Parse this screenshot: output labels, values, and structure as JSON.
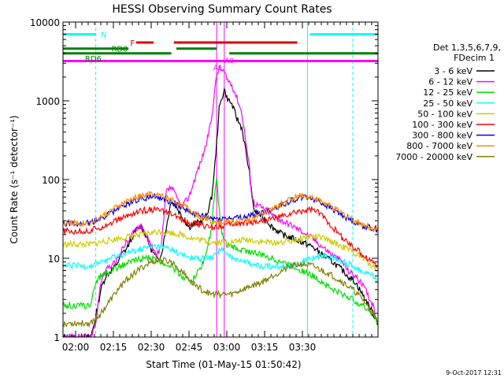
{
  "chart_data": {
    "type": "line",
    "title": "HESSI Observing Summary Count Rates",
    "xlabel": "Start Time (01-May-15 01:50:42)",
    "ylabel": "Count Rate (s⁻¹ detector⁻¹)",
    "ylog": true,
    "ylim": [
      1,
      10000
    ],
    "xlim_min": [
      5,
      130
    ],
    "x_tick_labels": [
      "02:00",
      "02:15",
      "02:30",
      "02:45",
      "03:00",
      "03:15",
      "03:30"
    ],
    "x_tick_min": [
      10,
      25,
      40,
      55,
      70,
      85,
      100
    ],
    "y_tick_labels": [
      "1",
      "10",
      "100",
      "1000",
      "10000"
    ],
    "y_ticks": [
      1,
      10,
      100,
      1000,
      10000
    ],
    "legend_title": [
      "Det 1,3,5,6,7,9,",
      "FDecim 1"
    ],
    "series": [
      {
        "name": "3 - 6 keV",
        "color": "#000000",
        "x": [
          5,
          16,
          18,
          20,
          22,
          26,
          28,
          30,
          32,
          34,
          36,
          38,
          40,
          42,
          44,
          46,
          48,
          50,
          52,
          55,
          58,
          60,
          62,
          64,
          65,
          66,
          67,
          69,
          70,
          72,
          74,
          76,
          79,
          80,
          81,
          86,
          88,
          92,
          96,
          100,
          104,
          108,
          112,
          116,
          118,
          121,
          125,
          128,
          130
        ],
        "y": [
          1,
          1,
          1.8,
          4,
          6,
          8,
          11,
          13,
          17,
          23,
          26,
          19,
          13,
          10,
          11,
          25,
          55,
          45,
          35,
          25,
          28,
          30,
          35,
          60,
          120,
          300,
          800,
          1400,
          1100,
          900,
          600,
          450,
          120,
          60,
          40,
          30,
          25,
          20,
          18,
          16,
          14,
          11,
          9,
          7,
          6,
          5,
          3,
          2,
          1.5
        ]
      },
      {
        "name": "6 - 12 keV",
        "color": "#ff00ff",
        "x": [
          5,
          16,
          18,
          20,
          22,
          26,
          28,
          30,
          32,
          34,
          36,
          38,
          40,
          42,
          44,
          46,
          48,
          50,
          52,
          55,
          58,
          60,
          62,
          64,
          65,
          66,
          67,
          69,
          70,
          72,
          74,
          76,
          79,
          80,
          81,
          86,
          90,
          96,
          100,
          104,
          108,
          112,
          116,
          118,
          121,
          125,
          128,
          130
        ],
        "y": [
          1,
          1,
          1.5,
          5,
          7,
          9,
          12,
          16,
          19,
          24,
          27,
          20,
          14,
          11,
          14,
          70,
          80,
          60,
          45,
          60,
          120,
          180,
          300,
          600,
          1200,
          2100,
          2600,
          2300,
          1900,
          1600,
          1100,
          700,
          140,
          60,
          50,
          40,
          32,
          26,
          22,
          18,
          14,
          11,
          9,
          7,
          6,
          4,
          2.5,
          1.5
        ]
      },
      {
        "name": "12 - 25 keV",
        "color": "#00dd00",
        "x": [
          5,
          16,
          18,
          20,
          24,
          28,
          32,
          36,
          40,
          44,
          48,
          52,
          56,
          60,
          62,
          64,
          65,
          66,
          67,
          68,
          70,
          72,
          75,
          80,
          84,
          88,
          92,
          96,
          100,
          104,
          108,
          112,
          116,
          120,
          124,
          128,
          130
        ],
        "y": [
          2.5,
          2.5,
          5,
          6,
          7,
          8,
          9,
          10,
          10,
          9,
          8,
          6,
          5,
          8,
          12,
          25,
          60,
          100,
          40,
          20,
          15,
          14,
          13,
          12,
          11,
          10,
          9,
          8,
          7,
          6,
          5,
          4,
          3.5,
          3,
          2.5,
          2,
          1.5
        ]
      },
      {
        "name": "25 - 50 keV",
        "color": "#00ffff",
        "x": [
          5,
          16,
          20,
          24,
          28,
          32,
          36,
          40,
          44,
          48,
          52,
          56,
          60,
          64,
          66,
          68,
          70,
          74,
          78,
          82,
          86,
          90,
          96,
          100,
          104,
          108,
          112,
          116,
          120,
          124,
          128,
          130
        ],
        "y": [
          8,
          8,
          9,
          10,
          11,
          12,
          13,
          14,
          14,
          13,
          11,
          10,
          10,
          10,
          12,
          13,
          11,
          10,
          9,
          8,
          8,
          8,
          8,
          9,
          10,
          11,
          10,
          9,
          8,
          7,
          6,
          5
        ]
      },
      {
        "name": "50 - 100 keV",
        "color": "#cccc00",
        "x": [
          5,
          16,
          20,
          24,
          28,
          32,
          36,
          40,
          44,
          48,
          52,
          56,
          60,
          64,
          68,
          72,
          76,
          80,
          84,
          88,
          92,
          96,
          100,
          104,
          108,
          112,
          116,
          120,
          124,
          128,
          130
        ],
        "y": [
          15,
          15,
          16,
          17,
          18,
          19,
          20,
          21,
          22,
          21,
          20,
          18,
          17,
          16,
          16,
          16,
          17,
          17,
          16,
          16,
          16,
          17,
          18,
          19,
          18,
          16,
          14,
          12,
          10,
          8,
          7
        ]
      },
      {
        "name": "100 - 300 keV",
        "color": "#ff0000",
        "x": [
          5,
          16,
          18,
          20,
          24,
          28,
          32,
          36,
          40,
          44,
          48,
          52,
          56,
          60,
          64,
          68,
          72,
          76,
          80,
          84,
          88,
          92,
          96,
          100,
          104,
          108,
          112,
          116,
          120,
          124,
          128,
          130
        ],
        "y": [
          22,
          22,
          24,
          25,
          28,
          32,
          36,
          40,
          42,
          40,
          36,
          32,
          28,
          26,
          25,
          26,
          27,
          28,
          29,
          30,
          32,
          34,
          37,
          40,
          42,
          35,
          25,
          18,
          14,
          11,
          9,
          8
        ]
      },
      {
        "name": "300 - 800 keV",
        "color": "#0000ff",
        "x": [
          5,
          16,
          20,
          24,
          28,
          32,
          36,
          40,
          44,
          48,
          52,
          56,
          60,
          64,
          68,
          72,
          76,
          80,
          84,
          88,
          92,
          96,
          100,
          104,
          108,
          112,
          116,
          120,
          124,
          128,
          130
        ],
        "y": [
          28,
          28,
          32,
          38,
          45,
          52,
          58,
          60,
          58,
          52,
          45,
          38,
          34,
          32,
          32,
          32,
          33,
          35,
          38,
          42,
          48,
          55,
          60,
          58,
          50,
          42,
          35,
          30,
          26,
          24,
          23
        ]
      },
      {
        "name": "800 - 7000 keV",
        "color": "#ff8c00",
        "x": [
          5,
          16,
          20,
          24,
          28,
          32,
          36,
          40,
          44,
          48,
          52,
          56,
          60,
          64,
          68,
          72,
          76,
          80,
          84,
          88,
          92,
          96,
          100,
          104,
          108,
          112,
          116,
          120,
          124,
          128,
          130
        ],
        "y": [
          28,
          28,
          33,
          40,
          48,
          56,
          62,
          65,
          62,
          56,
          48,
          40,
          33,
          30,
          29,
          29,
          30,
          32,
          36,
          42,
          50,
          58,
          63,
          60,
          52,
          44,
          37,
          31,
          27,
          24,
          23
        ]
      },
      {
        "name": "7000 - 20000 keV",
        "color": "#808000",
        "x": [
          5,
          16,
          20,
          24,
          28,
          32,
          36,
          40,
          44,
          48,
          52,
          56,
          60,
          64,
          68,
          72,
          76,
          80,
          84,
          88,
          92,
          96,
          100,
          104,
          108,
          112,
          116,
          120,
          124,
          128,
          130
        ],
        "y": [
          1.5,
          1.5,
          2,
          3,
          4.5,
          6,
          7.5,
          9,
          9.5,
          9,
          7,
          5,
          4,
          3.5,
          3.5,
          3.5,
          4,
          4.5,
          5,
          6,
          7,
          8,
          8.5,
          8,
          7,
          6,
          5,
          4,
          3,
          2,
          1.5
        ]
      }
    ],
    "state_bars": [
      {
        "label": "N",
        "color": "#00ffff",
        "y": 7000,
        "segments": [
          [
            5,
            18
          ],
          [
            103,
            130
          ]
        ]
      },
      {
        "label": "F",
        "color": "#dd0000",
        "y": 5500,
        "segments": [
          [
            34,
            41
          ],
          [
            49,
            98
          ]
        ]
      },
      {
        "label": "RD0",
        "color": "#008000",
        "y": 4600,
        "segments": [
          [
            5,
            31
          ],
          [
            50,
            66
          ]
        ]
      },
      {
        "label": "RD6",
        "color": "#008000",
        "y": 4000,
        "segments": [
          [
            5,
            48
          ],
          [
            71,
            130
          ]
        ]
      },
      {
        "label": "",
        "color": "#ff00ff",
        "y": 3200,
        "segments": [
          [
            5,
            130
          ]
        ]
      }
    ],
    "attenuator_labels": [
      {
        "label": "A1",
        "min": 66.5,
        "y": 2700
      },
      {
        "label": "A0",
        "min": 71,
        "y": 3300
      }
    ],
    "vlines": [
      {
        "min": 18,
        "color": "#00ffff",
        "dashed": true
      },
      {
        "min": 66,
        "color": "#ff00ff",
        "dashed": false
      },
      {
        "min": 69,
        "color": "#ff00ff",
        "dashed": false
      },
      {
        "min": 102,
        "color": "#00ffff",
        "dashed": false
      },
      {
        "min": 120,
        "color": "#00ffff",
        "dashed": true
      }
    ],
    "footer_date": "9-Oct-2017 12:31"
  }
}
